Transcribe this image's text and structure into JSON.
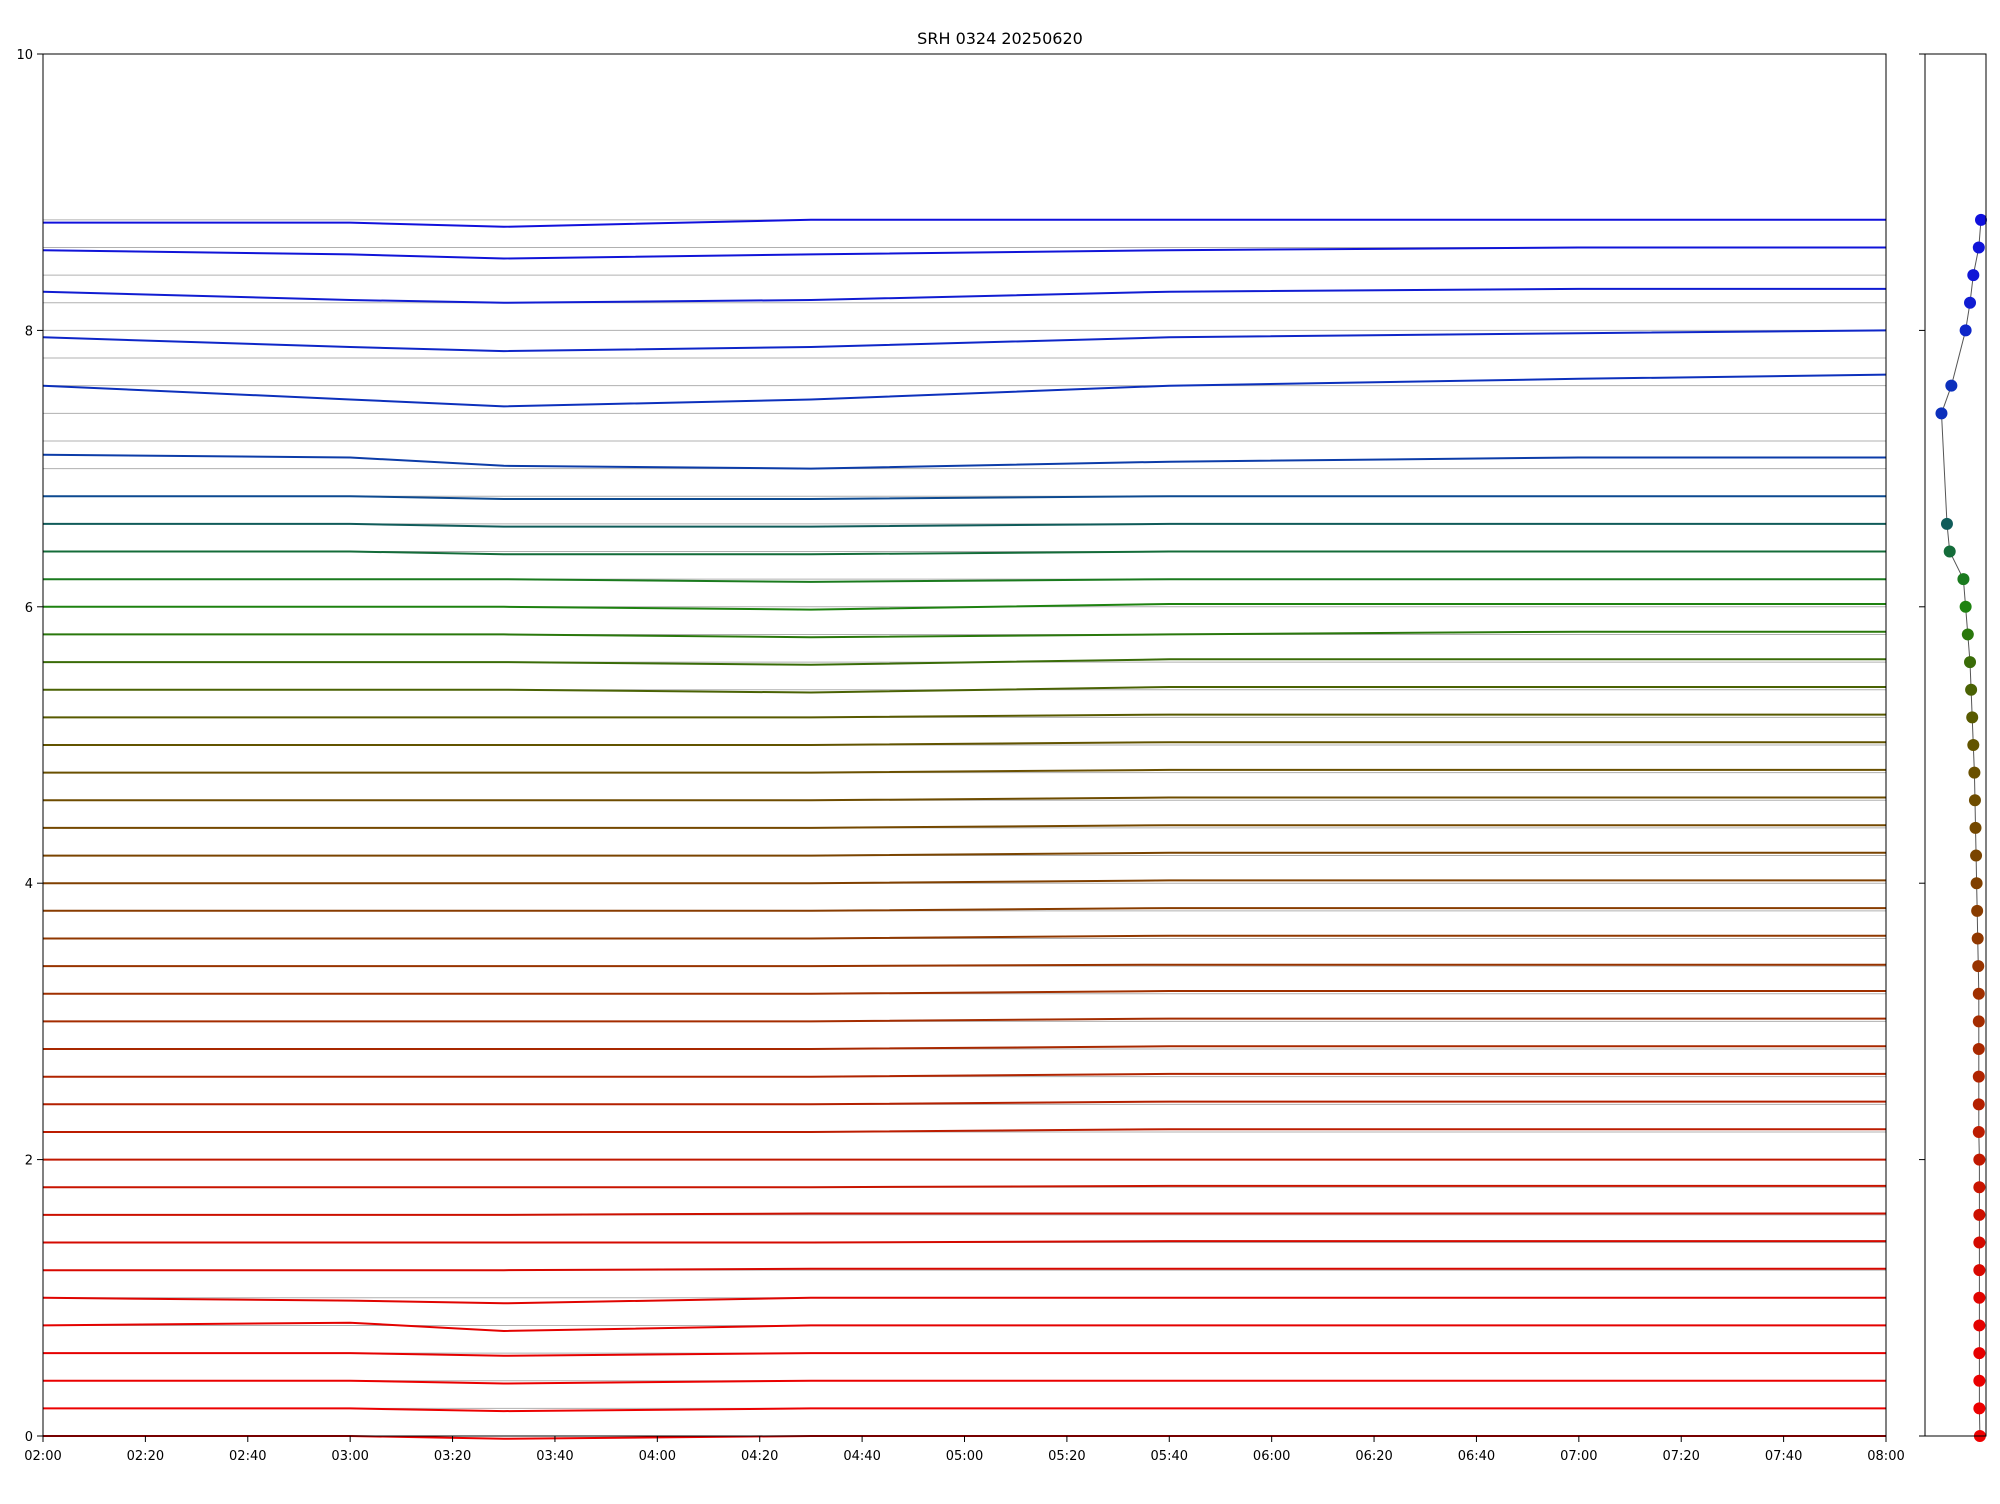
{
  "chart_data": [
    {
      "type": "line",
      "title": "SRH 0324 20250620",
      "xlabel": "",
      "ylabel": "",
      "xlim": [
        "02:00",
        "08:00"
      ],
      "ylim": [
        0,
        10
      ],
      "x_ticks": [
        "02:00",
        "02:20",
        "02:40",
        "03:00",
        "03:20",
        "03:40",
        "04:00",
        "04:20",
        "04:40",
        "05:00",
        "05:20",
        "05:40",
        "06:00",
        "06:20",
        "06:40",
        "07:00",
        "07:20",
        "07:40",
        "08:00"
      ],
      "y_ticks": [
        "0",
        "2",
        "4",
        "6",
        "8",
        "10"
      ],
      "grid": "horizontal reference lines at each trace baseline",
      "legend": "none",
      "baseline_spacing": 0.2,
      "baselines": [
        0.0,
        0.2,
        0.4,
        0.6,
        0.8,
        1.0,
        1.2,
        1.4,
        1.6,
        1.8,
        2.0,
        2.2,
        2.4,
        2.6,
        2.8,
        3.0,
        3.2,
        3.4,
        3.6,
        3.8,
        4.0,
        4.2,
        4.4,
        4.6,
        4.8,
        5.0,
        5.2,
        5.4,
        5.6,
        5.8,
        6.0,
        6.2,
        6.4,
        6.6,
        6.8,
        7.0,
        7.2,
        7.4,
        7.6,
        7.8,
        8.0,
        8.2,
        8.4,
        8.6,
        8.8
      ],
      "color_gradient": [
        "#ee0000",
        "#a03000",
        "#6a5000",
        "#1a8a10",
        "#0d4a90",
        "#1010d8"
      ],
      "series": [
        {
          "values": [
            0.0,
            0.0,
            -0.02,
            0.0,
            0.0,
            0.0,
            0.0
          ],
          "color": "#ee0000"
        },
        {
          "values": [
            0.2,
            0.2,
            0.18,
            0.2,
            0.2,
            0.2,
            0.2
          ],
          "color": "#ec0000"
        },
        {
          "values": [
            0.4,
            0.4,
            0.38,
            0.4,
            0.4,
            0.4,
            0.4
          ],
          "color": "#ea0000"
        },
        {
          "values": [
            0.6,
            0.6,
            0.58,
            0.6,
            0.6,
            0.6,
            0.6
          ],
          "color": "#e60000"
        },
        {
          "values": [
            0.8,
            0.82,
            0.76,
            0.8,
            0.8,
            0.8,
            0.8
          ],
          "color": "#e40200"
        },
        {
          "values": [
            1.0,
            0.98,
            0.96,
            1.0,
            1.0,
            1.0,
            1.0
          ],
          "color": "#e00400"
        },
        {
          "values": [
            1.2,
            1.2,
            1.2,
            1.21,
            1.21,
            1.21,
            1.21
          ],
          "color": "#d80800"
        },
        {
          "values": [
            1.4,
            1.4,
            1.4,
            1.4,
            1.41,
            1.41,
            1.41
          ],
          "color": "#d40a00"
        },
        {
          "values": [
            1.6,
            1.6,
            1.6,
            1.61,
            1.61,
            1.61,
            1.61
          ],
          "color": "#cc1000"
        },
        {
          "values": [
            1.8,
            1.8,
            1.8,
            1.8,
            1.81,
            1.81,
            1.81
          ],
          "color": "#c81400"
        },
        {
          "values": [
            2.0,
            2.0,
            2.0,
            2.0,
            2.0,
            2.0,
            2.0
          ],
          "color": "#c01800"
        },
        {
          "values": [
            2.2,
            2.2,
            2.2,
            2.2,
            2.22,
            2.22,
            2.22
          ],
          "color": "#bc1c00"
        },
        {
          "values": [
            2.4,
            2.4,
            2.4,
            2.4,
            2.42,
            2.42,
            2.42
          ],
          "color": "#b42000"
        },
        {
          "values": [
            2.6,
            2.6,
            2.6,
            2.6,
            2.62,
            2.62,
            2.62
          ],
          "color": "#b02400"
        },
        {
          "values": [
            2.8,
            2.8,
            2.8,
            2.8,
            2.82,
            2.82,
            2.82
          ],
          "color": "#a82800"
        },
        {
          "values": [
            3.0,
            3.0,
            3.0,
            3.0,
            3.02,
            3.02,
            3.02
          ],
          "color": "#a42c00"
        },
        {
          "values": [
            3.2,
            3.2,
            3.2,
            3.2,
            3.22,
            3.22,
            3.22
          ],
          "color": "#a03000"
        },
        {
          "values": [
            3.4,
            3.4,
            3.4,
            3.4,
            3.41,
            3.41,
            3.41
          ],
          "color": "#983400"
        },
        {
          "values": [
            3.6,
            3.6,
            3.6,
            3.6,
            3.62,
            3.62,
            3.62
          ],
          "color": "#903800"
        },
        {
          "values": [
            3.8,
            3.8,
            3.8,
            3.8,
            3.82,
            3.82,
            3.82
          ],
          "color": "#883c00"
        },
        {
          "values": [
            4.0,
            4.0,
            4.0,
            4.0,
            4.02,
            4.02,
            4.02
          ],
          "color": "#804000"
        },
        {
          "values": [
            4.2,
            4.2,
            4.2,
            4.2,
            4.22,
            4.22,
            4.22
          ],
          "color": "#7a4400"
        },
        {
          "values": [
            4.4,
            4.4,
            4.4,
            4.4,
            4.42,
            4.42,
            4.42
          ],
          "color": "#744800"
        },
        {
          "values": [
            4.6,
            4.6,
            4.6,
            4.6,
            4.62,
            4.62,
            4.62
          ],
          "color": "#6e4c00"
        },
        {
          "values": [
            4.8,
            4.8,
            4.8,
            4.8,
            4.82,
            4.82,
            4.82
          ],
          "color": "#6a5000"
        },
        {
          "values": [
            5.0,
            5.0,
            5.0,
            5.0,
            5.02,
            5.02,
            5.02
          ],
          "color": "#625400"
        },
        {
          "values": [
            5.2,
            5.2,
            5.2,
            5.2,
            5.22,
            5.22,
            5.22
          ],
          "color": "#585a00"
        },
        {
          "values": [
            5.4,
            5.4,
            5.4,
            5.38,
            5.42,
            5.42,
            5.42
          ],
          "color": "#4a6204"
        },
        {
          "values": [
            5.6,
            5.6,
            5.6,
            5.58,
            5.62,
            5.62,
            5.62
          ],
          "color": "#3a6c08"
        },
        {
          "values": [
            5.8,
            5.8,
            5.8,
            5.78,
            5.8,
            5.82,
            5.82
          ],
          "color": "#2a780c"
        },
        {
          "values": [
            6.0,
            6.0,
            6.0,
            5.98,
            6.02,
            6.02,
            6.02
          ],
          "color": "#1e8210"
        },
        {
          "values": [
            6.2,
            6.2,
            6.2,
            6.18,
            6.2,
            6.2,
            6.2
          ],
          "color": "#1a7a1e"
        },
        {
          "values": [
            6.4,
            6.4,
            6.38,
            6.38,
            6.4,
            6.4,
            6.4
          ],
          "color": "#146c3a"
        },
        {
          "values": [
            6.6,
            6.6,
            6.58,
            6.58,
            6.6,
            6.6,
            6.6
          ],
          "color": "#105c5a"
        },
        {
          "values": [
            6.8,
            6.8,
            6.78,
            6.78,
            6.8,
            6.8,
            6.8
          ],
          "color": "#0d4a90"
        },
        {
          "values": [
            7.1,
            7.08,
            7.02,
            7.0,
            7.05,
            7.08,
            7.08
          ],
          "color": "#0c3ca8"
        },
        {
          "values": [
            7.6,
            7.5,
            7.45,
            7.5,
            7.6,
            7.65,
            7.68
          ],
          "color": "#0c30bc"
        },
        {
          "values": [
            7.95,
            7.88,
            7.85,
            7.88,
            7.95,
            7.98,
            8.0
          ],
          "color": "#0e26c8"
        },
        {
          "values": [
            8.28,
            8.22,
            8.2,
            8.22,
            8.28,
            8.3,
            8.3
          ],
          "color": "#101cd2"
        },
        {
          "values": [
            8.58,
            8.55,
            8.52,
            8.55,
            8.58,
            8.6,
            8.6
          ],
          "color": "#1014d8"
        },
        {
          "values": [
            8.78,
            8.78,
            8.75,
            8.8,
            8.8,
            8.8,
            8.8
          ],
          "color": "#1010dc"
        }
      ],
      "series_x": [
        "02:00",
        "03:00",
        "03:30",
        "04:30",
        "05:40",
        "07:00",
        "08:00"
      ]
    },
    {
      "type": "scatter",
      "title": "",
      "xlabel": "",
      "ylabel": "",
      "ylim": [
        0,
        10
      ],
      "points": [
        {
          "x": 1.0,
          "y": 0.0,
          "color": "#ee0000"
        },
        {
          "x": 0.99,
          "y": 0.2,
          "color": "#ec0000"
        },
        {
          "x": 0.99,
          "y": 0.4,
          "color": "#ea0000"
        },
        {
          "x": 0.99,
          "y": 0.6,
          "color": "#e60000"
        },
        {
          "x": 0.99,
          "y": 0.8,
          "color": "#e40200"
        },
        {
          "x": 0.99,
          "y": 1.0,
          "color": "#e00400"
        },
        {
          "x": 0.99,
          "y": 1.2,
          "color": "#d80800"
        },
        {
          "x": 0.99,
          "y": 1.4,
          "color": "#d40a00"
        },
        {
          "x": 0.99,
          "y": 1.6,
          "color": "#cc1000"
        },
        {
          "x": 0.99,
          "y": 1.8,
          "color": "#c81400"
        },
        {
          "x": 0.99,
          "y": 2.0,
          "color": "#c01800"
        },
        {
          "x": 0.98,
          "y": 2.2,
          "color": "#bc1c00"
        },
        {
          "x": 0.98,
          "y": 2.4,
          "color": "#b42000"
        },
        {
          "x": 0.98,
          "y": 2.6,
          "color": "#b02400"
        },
        {
          "x": 0.98,
          "y": 2.8,
          "color": "#a82800"
        },
        {
          "x": 0.98,
          "y": 3.0,
          "color": "#a42c00"
        },
        {
          "x": 0.98,
          "y": 3.2,
          "color": "#a03000"
        },
        {
          "x": 0.97,
          "y": 3.4,
          "color": "#983400"
        },
        {
          "x": 0.96,
          "y": 3.6,
          "color": "#903800"
        },
        {
          "x": 0.95,
          "y": 3.8,
          "color": "#883c00"
        },
        {
          "x": 0.94,
          "y": 4.0,
          "color": "#804000"
        },
        {
          "x": 0.93,
          "y": 4.2,
          "color": "#7a4400"
        },
        {
          "x": 0.92,
          "y": 4.4,
          "color": "#744800"
        },
        {
          "x": 0.91,
          "y": 4.6,
          "color": "#6e4c00"
        },
        {
          "x": 0.9,
          "y": 4.8,
          "color": "#6a5000"
        },
        {
          "x": 0.88,
          "y": 5.0,
          "color": "#625400"
        },
        {
          "x": 0.86,
          "y": 5.2,
          "color": "#585a00"
        },
        {
          "x": 0.84,
          "y": 5.4,
          "color": "#4a6204"
        },
        {
          "x": 0.82,
          "y": 5.6,
          "color": "#3a6c08"
        },
        {
          "x": 0.78,
          "y": 5.8,
          "color": "#2a780c"
        },
        {
          "x": 0.74,
          "y": 6.0,
          "color": "#1e8210"
        },
        {
          "x": 0.7,
          "y": 6.2,
          "color": "#1a7a1e"
        },
        {
          "x": 0.45,
          "y": 6.4,
          "color": "#146c3a"
        },
        {
          "x": 0.4,
          "y": 6.6,
          "color": "#105c5a"
        },
        {
          "x": 0.3,
          "y": 7.4,
          "color": "#0c30bc"
        },
        {
          "x": 0.48,
          "y": 7.6,
          "color": "#0c30bc"
        },
        {
          "x": 0.74,
          "y": 8.0,
          "color": "#0e26c8"
        },
        {
          "x": 0.82,
          "y": 8.2,
          "color": "#101cd2"
        },
        {
          "x": 0.88,
          "y": 8.4,
          "color": "#1016d6"
        },
        {
          "x": 0.98,
          "y": 8.6,
          "color": "#1014d8"
        },
        {
          "x": 1.02,
          "y": 8.8,
          "color": "#1010dc"
        }
      ]
    }
  ]
}
